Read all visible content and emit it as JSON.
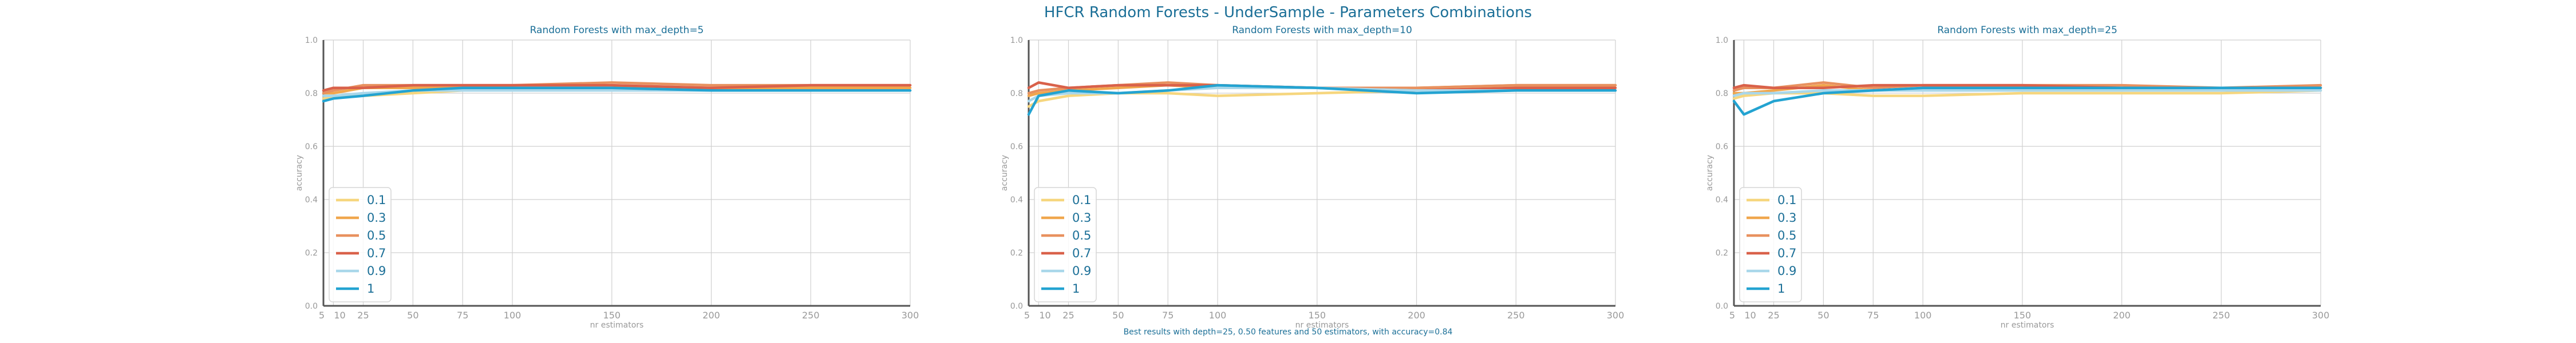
{
  "figure": {
    "suptitle": "HFCR Random Forests - UnderSample - Parameters Combinations",
    "caption": "Best results with depth=25, 0.50 features and 50 estimators, with accuracy=0.84",
    "title_color": "#1b6f97"
  },
  "chart_data": [
    {
      "type": "line",
      "title": "Random Forests with max_depth=5",
      "xlabel": "nr estimators",
      "ylabel": "accuracy",
      "x": [
        5,
        10,
        25,
        50,
        75,
        100,
        150,
        200,
        250,
        300
      ],
      "xticks": [
        "5",
        "10",
        "25",
        "50",
        "75",
        "100",
        "150",
        "200",
        "250",
        "300"
      ],
      "yticks": [
        "0.0",
        "0.2",
        "0.4",
        "0.6",
        "0.8",
        "1.0"
      ],
      "xlim": [
        5,
        300
      ],
      "ylim": [
        0,
        1
      ],
      "grid": true,
      "legend_position": "lower-left",
      "series": [
        {
          "name": "0.1",
          "color": "#f6d67e",
          "values": [
            0.78,
            0.79,
            0.79,
            0.8,
            0.81,
            0.81,
            0.81,
            0.81,
            0.81,
            0.81
          ]
        },
        {
          "name": "0.3",
          "color": "#f0a64c",
          "values": [
            0.8,
            0.8,
            0.82,
            0.82,
            0.82,
            0.82,
            0.82,
            0.82,
            0.82,
            0.82
          ]
        },
        {
          "name": "0.5",
          "color": "#e8915f",
          "values": [
            0.8,
            0.81,
            0.83,
            0.83,
            0.83,
            0.83,
            0.84,
            0.83,
            0.83,
            0.83
          ]
        },
        {
          "name": "0.7",
          "color": "#d9614a",
          "values": [
            0.81,
            0.82,
            0.82,
            0.83,
            0.83,
            0.83,
            0.83,
            0.82,
            0.83,
            0.83
          ]
        },
        {
          "name": "0.9",
          "color": "#a9d7ea",
          "values": [
            0.79,
            0.79,
            0.8,
            0.81,
            0.81,
            0.81,
            0.81,
            0.81,
            0.81,
            0.81
          ]
        },
        {
          "name": "1",
          "color": "#23a3d1",
          "values": [
            0.77,
            0.78,
            0.79,
            0.81,
            0.82,
            0.82,
            0.82,
            0.81,
            0.81,
            0.81
          ]
        }
      ]
    },
    {
      "type": "line",
      "title": "Random Forests with max_depth=10",
      "xlabel": "nr estimators",
      "ylabel": "accuracy",
      "x": [
        5,
        10,
        25,
        50,
        75,
        100,
        150,
        200,
        250,
        300
      ],
      "xticks": [
        "5",
        "10",
        "25",
        "50",
        "75",
        "100",
        "150",
        "200",
        "250",
        "300"
      ],
      "yticks": [
        "0.0",
        "0.2",
        "0.4",
        "0.6",
        "0.8",
        "1.0"
      ],
      "xlim": [
        5,
        300
      ],
      "ylim": [
        0,
        1
      ],
      "grid": true,
      "legend_position": "lower-left",
      "series": [
        {
          "name": "0.1",
          "color": "#f6d67e",
          "values": [
            0.75,
            0.77,
            0.79,
            0.8,
            0.8,
            0.79,
            0.8,
            0.81,
            0.82,
            0.82
          ]
        },
        {
          "name": "0.3",
          "color": "#f0a64c",
          "values": [
            0.79,
            0.8,
            0.81,
            0.82,
            0.83,
            0.82,
            0.82,
            0.82,
            0.83,
            0.83
          ]
        },
        {
          "name": "0.5",
          "color": "#e8915f",
          "values": [
            0.8,
            0.81,
            0.82,
            0.83,
            0.84,
            0.83,
            0.82,
            0.82,
            0.83,
            0.83
          ]
        },
        {
          "name": "0.7",
          "color": "#d9614a",
          "values": [
            0.82,
            0.84,
            0.82,
            0.83,
            0.83,
            0.83,
            0.82,
            0.81,
            0.82,
            0.82
          ]
        },
        {
          "name": "0.9",
          "color": "#a9d7ea",
          "values": [
            0.77,
            0.79,
            0.8,
            0.8,
            0.81,
            0.82,
            0.82,
            0.81,
            0.81,
            0.81
          ]
        },
        {
          "name": "1",
          "color": "#23a3d1",
          "values": [
            0.72,
            0.79,
            0.81,
            0.8,
            0.81,
            0.83,
            0.82,
            0.8,
            0.81,
            0.81
          ]
        }
      ]
    },
    {
      "type": "line",
      "title": "Random Forests with max_depth=25",
      "xlabel": "nr estimators",
      "ylabel": "accuracy",
      "x": [
        5,
        10,
        25,
        50,
        75,
        100,
        150,
        200,
        250,
        300
      ],
      "xticks": [
        "5",
        "10",
        "25",
        "50",
        "75",
        "100",
        "150",
        "200",
        "250",
        "300"
      ],
      "yticks": [
        "0.0",
        "0.2",
        "0.4",
        "0.6",
        "0.8",
        "1.0"
      ],
      "xlim": [
        5,
        300
      ],
      "ylim": [
        0,
        1
      ],
      "grid": true,
      "legend_position": "lower-left",
      "series": [
        {
          "name": "0.1",
          "color": "#f6d67e",
          "values": [
            0.78,
            0.79,
            0.8,
            0.8,
            0.79,
            0.79,
            0.8,
            0.8,
            0.8,
            0.81
          ]
        },
        {
          "name": "0.3",
          "color": "#f0a64c",
          "values": [
            0.8,
            0.8,
            0.81,
            0.83,
            0.81,
            0.81,
            0.82,
            0.82,
            0.82,
            0.82
          ]
        },
        {
          "name": "0.5",
          "color": "#e8915f",
          "values": [
            0.81,
            0.82,
            0.82,
            0.84,
            0.82,
            0.83,
            0.83,
            0.83,
            0.82,
            0.83
          ]
        },
        {
          "name": "0.7",
          "color": "#d9614a",
          "values": [
            0.82,
            0.83,
            0.82,
            0.82,
            0.83,
            0.83,
            0.83,
            0.82,
            0.82,
            0.82
          ]
        },
        {
          "name": "0.9",
          "color": "#a9d7ea",
          "values": [
            0.79,
            0.8,
            0.8,
            0.81,
            0.81,
            0.81,
            0.81,
            0.81,
            0.81,
            0.81
          ]
        },
        {
          "name": "1",
          "color": "#23a3d1",
          "values": [
            0.77,
            0.72,
            0.77,
            0.8,
            0.81,
            0.82,
            0.82,
            0.82,
            0.82,
            0.82
          ]
        }
      ]
    }
  ]
}
